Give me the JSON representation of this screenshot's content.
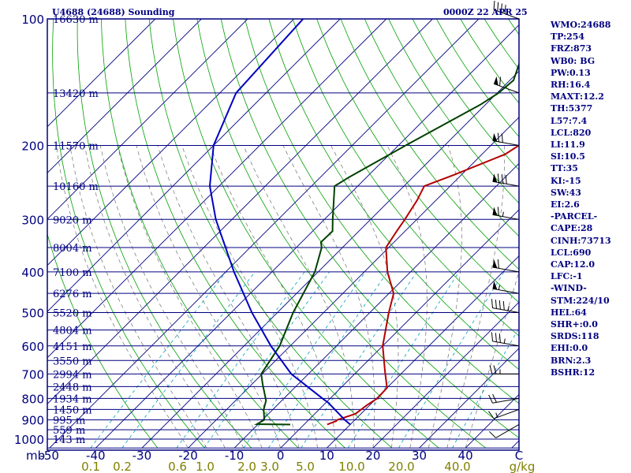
{
  "header": {
    "title_left": "U4688 (24688) Sounding",
    "title_right": "0000Z 22 APR 25"
  },
  "indices": [
    "WMO:24688",
    "TP:254",
    "FRZ:873",
    "WB0: BG",
    "PW:0.13",
    "RH:16.4",
    "MAXT:12.2",
    "TH:5377",
    "L57:7.4",
    "LCL:820",
    "LI:11.9",
    "SI:10.5",
    "TT:35",
    "KI:-15",
    "SW:43",
    "EI:2.6",
    "-PARCEL-",
    "CAPE:28",
    "CINH:73713",
    "LCL:690",
    "CAP:12.0",
    "LFC:-1",
    "-WIND-",
    "STM:224/10",
    "HEL:64",
    "SHR+:0.0",
    "SRDS:118",
    "EHI:0.0",
    "BRN:2.3",
    "BSHR:12"
  ],
  "chart_data": {
    "type": "skew-t",
    "colors": {
      "axes": "#000080",
      "temp": "#b40000",
      "dewpoint": "#004000",
      "parcel": "#0000c0",
      "dry_adiabat": "#00a000",
      "mixing_ratio": "#00a0c0",
      "moist_adiabat": "#707070"
    },
    "pressure_axis": {
      "label": "mb",
      "ticks": [
        100,
        200,
        300,
        400,
        500,
        600,
        700,
        800,
        900,
        1000
      ],
      "range": [
        1050,
        100
      ],
      "scale": "log"
    },
    "temperature_axis": {
      "ticks": [
        "-50",
        "-40",
        "-30",
        "-20",
        "-10",
        "0",
        "10",
        "20",
        "30",
        "40",
        "C"
      ],
      "values": [
        -50,
        -40,
        -30,
        -20,
        -10,
        0,
        10,
        20,
        30,
        40
      ]
    },
    "mixing_ratio_labels": {
      "ticks": [
        "0.1",
        "0.2",
        "0.6",
        "1.0",
        "2.0",
        "3.0",
        "5.0",
        "10.0",
        "20.0",
        "40.0",
        "g/kg"
      ],
      "values": [
        0.1,
        0.2,
        0.6,
        1.0,
        2.0,
        3.0,
        5.0,
        10.0,
        20.0,
        40.0
      ]
    },
    "height_labels": [
      {
        "p": 100,
        "label": "16630 m"
      },
      {
        "p": 150,
        "label": "13420 m"
      },
      {
        "p": 200,
        "label": "11570 m"
      },
      {
        "p": 250,
        "label": "10160 m"
      },
      {
        "p": 300,
        "label": "9020 m"
      },
      {
        "p": 350,
        "label": "8004 m"
      },
      {
        "p": 400,
        "label": "7100 m"
      },
      {
        "p": 450,
        "label": "6276 m"
      },
      {
        "p": 500,
        "label": "5520 m"
      },
      {
        "p": 550,
        "label": "4804 m"
      },
      {
        "p": 600,
        "label": "4151 m"
      },
      {
        "p": 650,
        "label": "3550 m"
      },
      {
        "p": 700,
        "label": "2994 m"
      },
      {
        "p": 750,
        "label": "2448 m"
      },
      {
        "p": 800,
        "label": "1934 m"
      },
      {
        "p": 850,
        "label": "1450 m"
      },
      {
        "p": 900,
        "label": "995 m"
      },
      {
        "p": 950,
        "label": "559 m"
      },
      {
        "p": 1000,
        "label": "143 m"
      }
    ],
    "series": [
      {
        "key": "temperature",
        "points": [
          [
            923,
            5.0
          ],
          [
            906,
            6.2
          ],
          [
            900,
            6.2
          ],
          [
            870,
            8.8
          ],
          [
            830,
            9.4
          ],
          [
            800,
            10.2
          ],
          [
            755,
            10.0
          ],
          [
            730,
            8.5
          ],
          [
            690,
            6.0
          ],
          [
            600,
            0.0
          ],
          [
            500,
            -5.9
          ],
          [
            450,
            -9.0
          ],
          [
            400,
            -15.0
          ],
          [
            350,
            -20.6
          ],
          [
            320,
            -21.8
          ],
          [
            300,
            -22.6
          ],
          [
            270,
            -24.1
          ],
          [
            250,
            -25.6
          ],
          [
            235,
            -21.6
          ],
          [
            210,
            -15.0
          ],
          [
            196,
            -13.5
          ],
          [
            170,
            -9.9
          ],
          [
            150,
            -6.5
          ],
          [
            145,
            -6.0
          ],
          [
            130,
            -6.5
          ],
          [
            115,
            -7.5
          ],
          [
            100,
            -6.7
          ]
        ]
      },
      {
        "key": "dewpoint",
        "points": [
          [
            923,
            -3.0
          ],
          [
            921,
            -10.3
          ],
          [
            900,
            -9.6
          ],
          [
            850,
            -12.0
          ],
          [
            810,
            -13.4
          ],
          [
            740,
            -17.7
          ],
          [
            700,
            -20.2
          ],
          [
            600,
            -22.3
          ],
          [
            500,
            -26.6
          ],
          [
            400,
            -30.7
          ],
          [
            350,
            -34.5
          ],
          [
            340,
            -35.8
          ],
          [
            320,
            -35.7
          ],
          [
            300,
            -38.2
          ],
          [
            250,
            -45.0
          ],
          [
            238,
            -43.8
          ],
          [
            200,
            -38.4
          ],
          [
            160,
            -31.1
          ],
          [
            150,
            -29.7
          ],
          [
            140,
            -29.2
          ],
          [
            115,
            -34.3
          ],
          [
            100,
            -36.3
          ]
        ]
      },
      {
        "key": "parcel",
        "points": [
          [
            923,
            10.0
          ],
          [
            900,
            7.8
          ],
          [
            820,
            0.6
          ],
          [
            800,
            -1.7
          ],
          [
            700,
            -13.7
          ],
          [
            600,
            -24.2
          ],
          [
            500,
            -35.5
          ],
          [
            400,
            -48.2
          ],
          [
            300,
            -63.5
          ],
          [
            250,
            -72.0
          ],
          [
            200,
            -80.0
          ],
          [
            150,
            -86.5
          ],
          [
            100,
            -88.0
          ]
        ]
      }
    ],
    "wind_barbs": [
      {
        "p": 923,
        "dir": 240,
        "spd": 10
      },
      {
        "p": 850,
        "dir": 250,
        "spd": 15
      },
      {
        "p": 800,
        "dir": 260,
        "spd": 20
      },
      {
        "p": 700,
        "dir": 270,
        "spd": 25
      },
      {
        "p": 600,
        "dir": 280,
        "spd": 35
      },
      {
        "p": 500,
        "dir": 280,
        "spd": 45
      },
      {
        "p": 450,
        "dir": 280,
        "spd": 55
      },
      {
        "p": 400,
        "dir": 280,
        "spd": 60
      },
      {
        "p": 300,
        "dir": 280,
        "spd": 65
      },
      {
        "p": 250,
        "dir": 280,
        "spd": 80
      },
      {
        "p": 200,
        "dir": 280,
        "spd": 70
      },
      {
        "p": 150,
        "dir": 290,
        "spd": 60
      },
      {
        "p": 100,
        "dir": 290,
        "spd": 40
      }
    ]
  }
}
